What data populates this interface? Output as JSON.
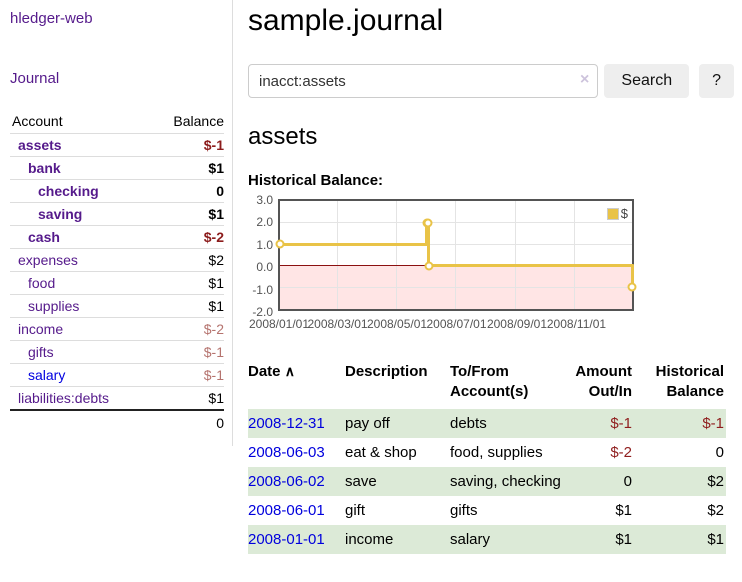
{
  "app": {
    "brand": "hledger-web"
  },
  "sidebar": {
    "journal_link": "Journal",
    "accounts": {
      "header_account": "Account",
      "header_balance": "Balance",
      "rows": [
        {
          "name": "assets",
          "balance": "$-1"
        },
        {
          "name": "bank",
          "balance": "$1"
        },
        {
          "name": "checking",
          "balance": "0"
        },
        {
          "name": "saving",
          "balance": "$1"
        },
        {
          "name": "cash",
          "balance": "$-2"
        },
        {
          "name": "expenses",
          "balance": "$2"
        },
        {
          "name": "food",
          "balance": "$1"
        },
        {
          "name": "supplies",
          "balance": "$1"
        },
        {
          "name": "income",
          "balance": "$-2"
        },
        {
          "name": "gifts",
          "balance": "$-1"
        },
        {
          "name": "salary",
          "balance": "$-1"
        },
        {
          "name": "liabilities:debts",
          "balance": "$1"
        }
      ],
      "total": "0"
    }
  },
  "main": {
    "title": "sample.journal",
    "search": {
      "value": "inacct:assets",
      "clear_icon": "×",
      "button_label": "Search",
      "help_label": "?"
    },
    "account_title": "assets",
    "chart_label": "Historical Balance:",
    "register": {
      "headers": {
        "date": "Date",
        "sort_asc_icon": "∧",
        "description": "Description",
        "accounts": "To/From Account(s)",
        "amount": "Amount Out/In",
        "balance": "Historical Balance"
      },
      "rows": [
        {
          "date": "2008-12-31",
          "description": "pay off",
          "accounts": "debts",
          "amount": "$-1",
          "balance": "$-1"
        },
        {
          "date": "2008-06-03",
          "description": "eat & shop",
          "accounts": "food, supplies",
          "amount": "$-2",
          "balance": "0"
        },
        {
          "date": "2008-06-02",
          "description": "save",
          "accounts": "saving, checking",
          "amount": "0",
          "balance": "$2"
        },
        {
          "date": "2008-06-01",
          "description": "gift",
          "accounts": "gifts",
          "amount": "$1",
          "balance": "$2"
        },
        {
          "date": "2008-01-01",
          "description": "income",
          "accounts": "salary",
          "amount": "$1",
          "balance": "$1"
        }
      ]
    }
  },
  "chart_data": {
    "type": "line",
    "title": "Historical Balance:",
    "step": true,
    "series": [
      {
        "name": "$",
        "color": "#e9c347",
        "points": [
          [
            "2008-01-01",
            1
          ],
          [
            "2008-06-01",
            2
          ],
          [
            "2008-06-02",
            2
          ],
          [
            "2008-06-03",
            0
          ],
          [
            "2008-12-31",
            -1
          ]
        ]
      }
    ],
    "x_domain": [
      "2008-01-01",
      "2008-12-31"
    ],
    "x_ticks": [
      {
        "date": "2008-01-01",
        "label": "2008/01/01"
      },
      {
        "date": "2008-03-01",
        "label": "2008/03/01"
      },
      {
        "date": "2008-05-01",
        "label": "2008/05/01"
      },
      {
        "date": "2008-07-01",
        "label": "2008/07/01"
      },
      {
        "date": "2008-09-01",
        "label": "2008/09/01"
      },
      {
        "date": "2008-11-01",
        "label": "2008/11/01"
      }
    ],
    "ylim": [
      -2,
      3
    ],
    "y_ticks": [
      {
        "v": 3,
        "label": "3.0"
      },
      {
        "v": 2,
        "label": "2.0"
      },
      {
        "v": 1,
        "label": "1.0"
      },
      {
        "v": 0,
        "label": "0.0"
      },
      {
        "v": -1,
        "label": "-1.0"
      },
      {
        "v": -2,
        "label": "-2.0"
      }
    ],
    "grid": true,
    "legend_position": "top-right",
    "negative_region_color": "rgba(255,0,0,0.10)",
    "zero_line_color": "#8b1010"
  }
}
